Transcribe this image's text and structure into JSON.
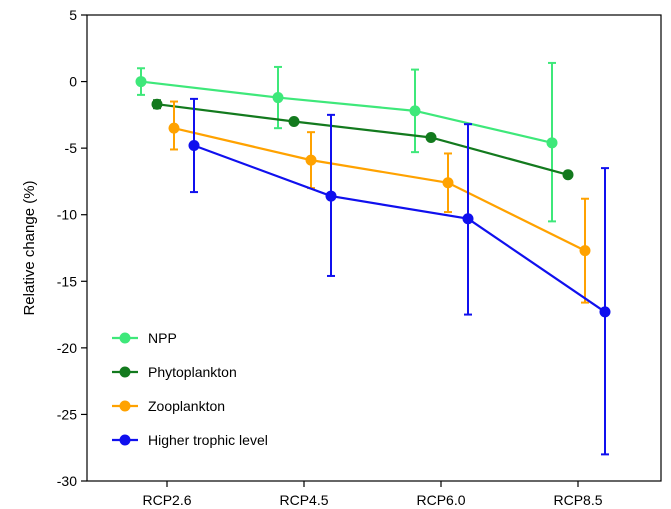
{
  "chart_data": {
    "type": "line",
    "title": "",
    "xlabel": "",
    "ylabel": "Relative change (%)",
    "categories": [
      "RCP2.6",
      "RCP4.5",
      "RCP6.0",
      "RCP8.5"
    ],
    "ylim": [
      -30,
      5
    ],
    "yticks": [
      5,
      0,
      -5,
      -10,
      -15,
      -20,
      -25,
      -30
    ],
    "ytick_labels": [
      "5",
      "0",
      "-5",
      "-10",
      "-15",
      "-20",
      "-25",
      "-30"
    ],
    "grid": false,
    "legend_position": "bottom-left",
    "series": [
      {
        "name": "NPP",
        "color": "#3ee87a",
        "values": [
          0.0,
          -1.2,
          -2.2,
          -4.6
        ],
        "err_low": [
          -1.0,
          -3.5,
          -5.3,
          -10.5
        ],
        "err_high": [
          1.0,
          1.1,
          0.9,
          1.4
        ]
      },
      {
        "name": "Phytoplankton",
        "color": "#137a1e",
        "values": [
          -1.7,
          -3.0,
          -4.2,
          -7.0
        ],
        "err_low": [
          -2.0,
          -3.0,
          -4.2,
          -7.2
        ],
        "err_high": [
          -1.4,
          -3.0,
          -4.2,
          -6.8
        ]
      },
      {
        "name": "Zooplankton",
        "color": "#ffa200",
        "values": [
          -3.5,
          -5.9,
          -7.6,
          -12.7
        ],
        "err_low": [
          -5.1,
          -8.0,
          -9.8,
          -16.6
        ],
        "err_high": [
          -1.5,
          -3.8,
          -5.4,
          -8.8
        ]
      },
      {
        "name": "Higher trophic level",
        "color": "#1010ee",
        "values": [
          -4.8,
          -8.6,
          -10.3,
          -17.3
        ],
        "err_low": [
          -8.3,
          -14.6,
          -17.5,
          -28.0
        ],
        "err_high": [
          -1.3,
          -2.5,
          -3.2,
          -6.5
        ]
      }
    ]
  }
}
